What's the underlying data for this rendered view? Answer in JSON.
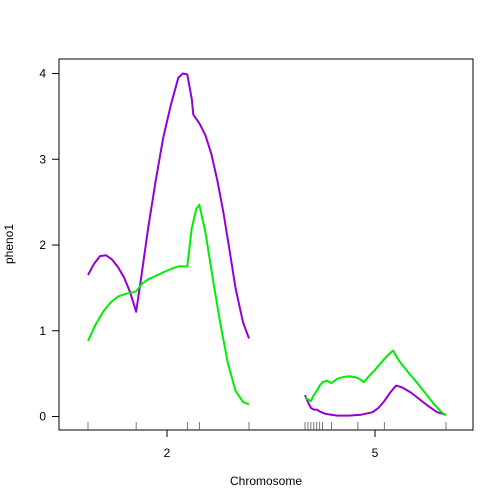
{
  "chart_data": {
    "type": "line",
    "xlabel": "Chromosome",
    "ylabel": "pheno1",
    "ylim": [
      0,
      4
    ],
    "y_ticks": [
      0,
      1,
      2,
      3,
      4
    ],
    "x_ticks": [
      "2",
      "5"
    ],
    "grid": false,
    "legend": "none",
    "chromosomes": [
      {
        "name": "2",
        "length_cM": 107,
        "markers_cM": [
          0,
          32,
          66,
          74,
          107
        ],
        "series": [
          {
            "color": "#9400D3",
            "points": [
              [
                0,
                1.65
              ],
              [
                4,
                1.78
              ],
              [
                8,
                1.87
              ],
              [
                12,
                1.88
              ],
              [
                16,
                1.83
              ],
              [
                20,
                1.74
              ],
              [
                24,
                1.62
              ],
              [
                28,
                1.45
              ],
              [
                31,
                1.28
              ],
              [
                32,
                1.22
              ],
              [
                35,
                1.58
              ],
              [
                40,
                2.2
              ],
              [
                45,
                2.75
              ],
              [
                50,
                3.25
              ],
              [
                55,
                3.63
              ],
              [
                60,
                3.95
              ],
              [
                63,
                4.0
              ],
              [
                66,
                3.99
              ],
              [
                69,
                3.7
              ],
              [
                70,
                3.52
              ],
              [
                74,
                3.42
              ],
              [
                78,
                3.28
              ],
              [
                82,
                3.06
              ],
              [
                86,
                2.75
              ],
              [
                90,
                2.38
              ],
              [
                94,
                1.95
              ],
              [
                98,
                1.5
              ],
              [
                103,
                1.1
              ],
              [
                107,
                0.91
              ]
            ]
          },
          {
            "color": "#00EE00",
            "points": [
              [
                0,
                0.88
              ],
              [
                5,
                1.07
              ],
              [
                10,
                1.22
              ],
              [
                15,
                1.33
              ],
              [
                20,
                1.4
              ],
              [
                25,
                1.43
              ],
              [
                30,
                1.45
              ],
              [
                32,
                1.46
              ],
              [
                36,
                1.55
              ],
              [
                40,
                1.6
              ],
              [
                45,
                1.64
              ],
              [
                50,
                1.68
              ],
              [
                55,
                1.72
              ],
              [
                60,
                1.75
              ],
              [
                66,
                1.75
              ],
              [
                69,
                2.2
              ],
              [
                72,
                2.42
              ],
              [
                74,
                2.47
              ],
              [
                78,
                2.15
              ],
              [
                83,
                1.6
              ],
              [
                88,
                1.08
              ],
              [
                93,
                0.62
              ],
              [
                98,
                0.3
              ],
              [
                103,
                0.17
              ],
              [
                107,
                0.14
              ]
            ]
          }
        ]
      },
      {
        "name": "5",
        "length_cM": 96,
        "markers_cM": [
          0,
          2,
          4,
          6,
          8,
          10,
          12,
          18,
          36,
          54,
          96
        ],
        "series": [
          {
            "color": "#9400D3",
            "points": [
              [
                0,
                0.25
              ],
              [
                2,
                0.17
              ],
              [
                4,
                0.1
              ],
              [
                6,
                0.08
              ],
              [
                8,
                0.08
              ],
              [
                10,
                0.06
              ],
              [
                14,
                0.03
              ],
              [
                18,
                0.02
              ],
              [
                22,
                0.01
              ],
              [
                30,
                0.01
              ],
              [
                38,
                0.02
              ],
              [
                46,
                0.05
              ],
              [
                50,
                0.1
              ],
              [
                54,
                0.18
              ],
              [
                58,
                0.28
              ],
              [
                62,
                0.36
              ],
              [
                66,
                0.34
              ],
              [
                72,
                0.28
              ],
              [
                78,
                0.2
              ],
              [
                84,
                0.12
              ],
              [
                90,
                0.05
              ],
              [
                96,
                0.02
              ]
            ]
          },
          {
            "color": "#00EE00",
            "points": [
              [
                0,
                0.22
              ],
              [
                2,
                0.2
              ],
              [
                4,
                0.18
              ],
              [
                6,
                0.25
              ],
              [
                8,
                0.3
              ],
              [
                10,
                0.36
              ],
              [
                12,
                0.4
              ],
              [
                15,
                0.42
              ],
              [
                18,
                0.39
              ],
              [
                22,
                0.44
              ],
              [
                26,
                0.46
              ],
              [
                30,
                0.47
              ],
              [
                34,
                0.46
              ],
              [
                37,
                0.44
              ],
              [
                40,
                0.4
              ],
              [
                43,
                0.46
              ],
              [
                48,
                0.55
              ],
              [
                54,
                0.67
              ],
              [
                58,
                0.74
              ],
              [
                60,
                0.77
              ],
              [
                64,
                0.65
              ],
              [
                70,
                0.52
              ],
              [
                76,
                0.4
              ],
              [
                82,
                0.27
              ],
              [
                88,
                0.14
              ],
              [
                93,
                0.05
              ],
              [
                96,
                0.01
              ]
            ]
          }
        ]
      }
    ]
  }
}
